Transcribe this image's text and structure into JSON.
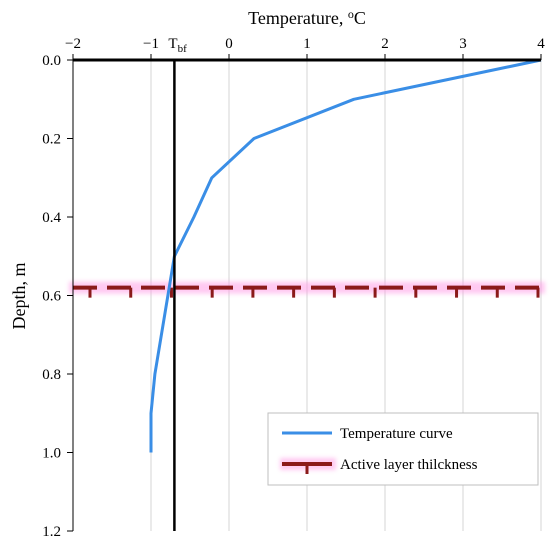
{
  "chart_data": {
    "type": "line",
    "title": "",
    "xlabel": "Temperature, ",
    "xlabel_sup": "o",
    "xlabel_unit": "C",
    "ylabel": "Depth, m",
    "xlim": [
      -2,
      4
    ],
    "ylim": [
      0,
      1.2
    ],
    "y_inverted": true,
    "x_axis_position": "top",
    "xticks": [
      -2,
      -1,
      0,
      1,
      2,
      3,
      4
    ],
    "xtick_labels": [
      "−2",
      "−1",
      "0",
      "1",
      "2",
      "3",
      "4"
    ],
    "yticks": [
      0,
      0.2,
      0.4,
      0.6,
      0.8,
      1.0,
      1.2
    ],
    "ytick_labels": [
      "0.0",
      "0.2",
      "0.4",
      "0.6",
      "0.8",
      "1.0",
      "1.2"
    ],
    "grid": "vertical",
    "series": [
      {
        "name": "Temperature curve",
        "color": "#3a8ee6",
        "x": [
          4,
          1.6,
          0.32,
          -0.22,
          -0.45,
          -0.7,
          -0.95,
          -1.0,
          -1.0
        ],
        "y": [
          0,
          0.1,
          0.2,
          0.3,
          0.4,
          0.5,
          0.8,
          0.9,
          1.0
        ]
      }
    ],
    "reference_lines": [
      {
        "kind": "vertical",
        "label": "T",
        "label_sub": "bf",
        "x": -0.7,
        "color": "#000000"
      },
      {
        "kind": "horizontal",
        "name": "Active layer thilckness",
        "y": 0.58,
        "color": "#8b1a1a",
        "halo_color": "#ff9de6"
      }
    ],
    "legend": {
      "position": "bottom-right",
      "entries": [
        "Temperature curve",
        "Active layer thilckness"
      ]
    }
  }
}
